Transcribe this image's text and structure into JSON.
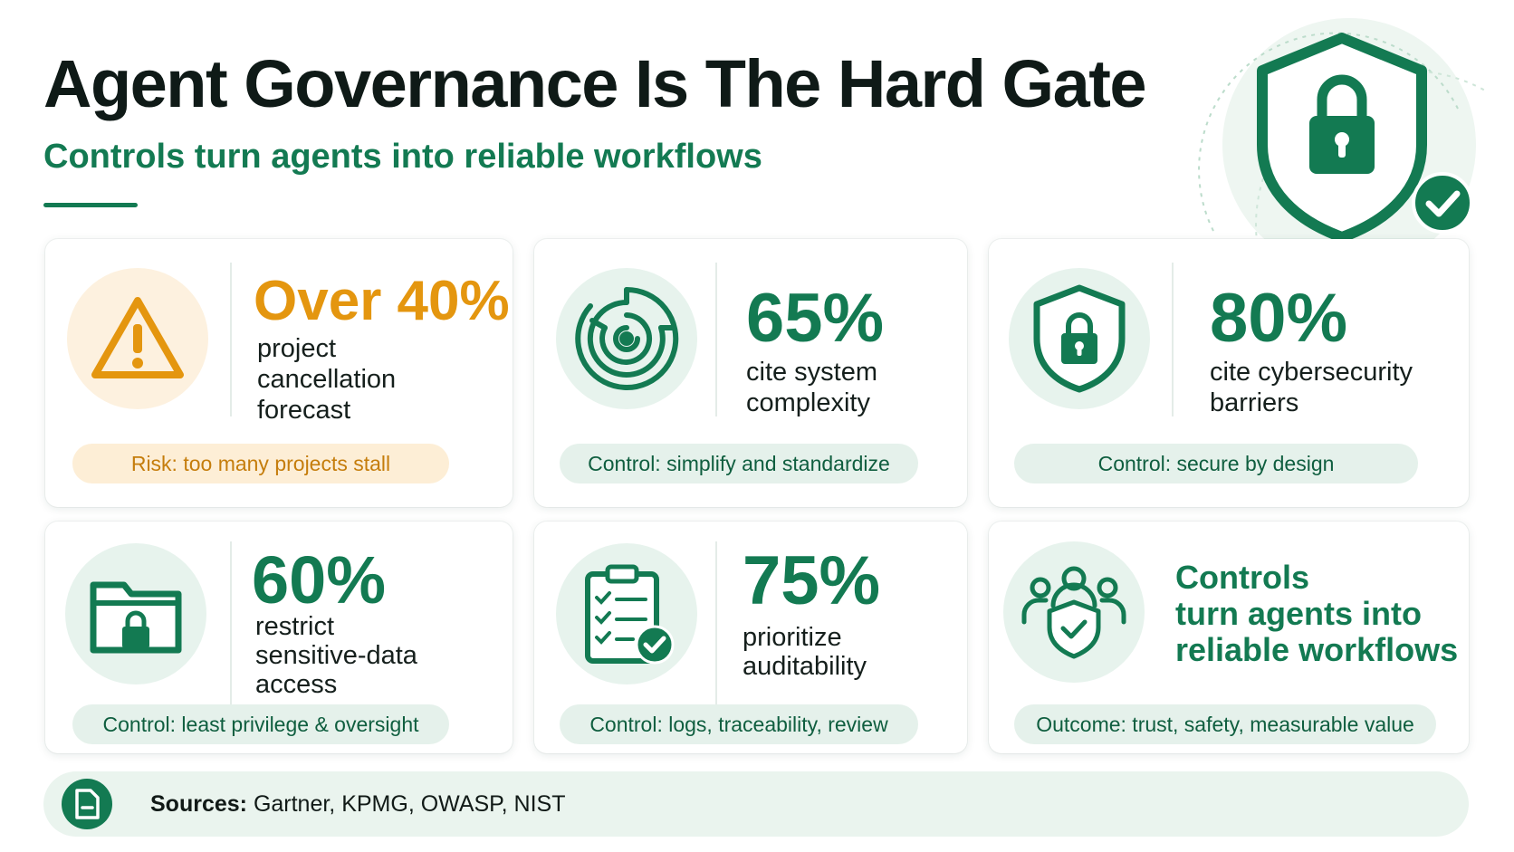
{
  "header": {
    "title": "Agent Governance Is The Hard Gate",
    "subtitle": "Controls turn agents into reliable workflows"
  },
  "hero_icon": "shield-lock-check-icon",
  "cards": [
    {
      "icon": "warning-triangle-icon",
      "stat": "Over 40%",
      "desc": [
        "project",
        "cancellation",
        "forecast"
      ],
      "pill": "Risk: too many projects stall"
    },
    {
      "icon": "maze-icon",
      "stat": "65%",
      "desc": [
        "cite system",
        "complexity"
      ],
      "pill": "Control: simplify and standardize"
    },
    {
      "icon": "shield-lock-icon",
      "stat": "80%",
      "desc": [
        "cite cybersecurity",
        "barriers"
      ],
      "pill": "Control: secure by design"
    },
    {
      "icon": "folder-lock-icon",
      "stat": "60%",
      "desc": [
        "restrict",
        "sensitive-data",
        "access"
      ],
      "pill": "Control: least privilege & oversight"
    },
    {
      "icon": "clipboard-check-icon",
      "stat": "75%",
      "desc": [
        "prioritize",
        "auditability"
      ],
      "pill": "Control: logs, traceability, review"
    },
    {
      "icon": "team-shield-icon",
      "outcome": [
        "Controls",
        "turn agents into",
        "reliable workflows"
      ],
      "pill": "Outcome: trust, safety, measurable value"
    }
  ],
  "footer": {
    "icon": "document-icon",
    "label": "Sources:",
    "sources": "Gartner, KPMG, OWASP, NIST"
  },
  "colors": {
    "primary_green": "#137a52",
    "amber": "#e4960f",
    "light_green": "#e7f3ed",
    "light_amber": "#fdf1df"
  }
}
